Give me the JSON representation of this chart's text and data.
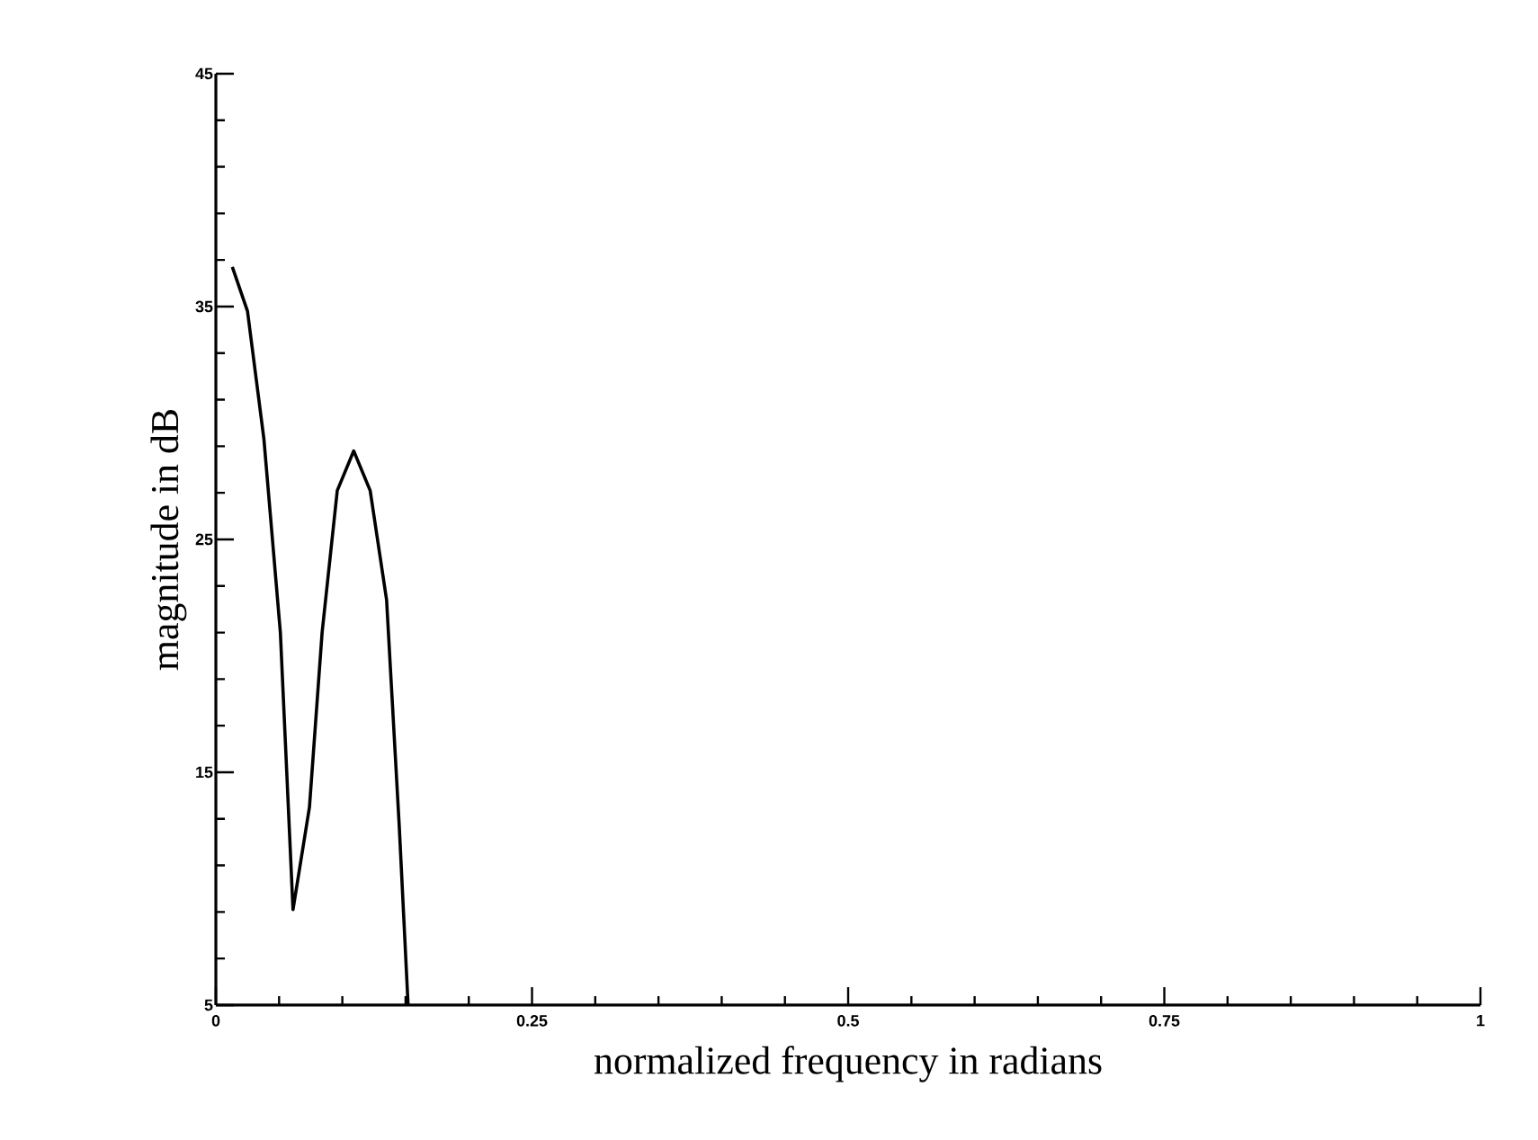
{
  "chart_data": {
    "type": "line",
    "xlabel": "normalized frequency in radians",
    "ylabel": "magnitude in dB",
    "x": [
      0.013,
      0.025,
      0.038,
      0.051,
      0.061,
      0.074,
      0.084,
      0.096,
      0.109,
      0.122,
      0.135,
      0.145,
      0.152
    ],
    "values": [
      36.7,
      34.8,
      29.3,
      21.0,
      9.1,
      13.5,
      21.0,
      27.1,
      28.8,
      27.1,
      22.4,
      12.7,
      5
    ],
    "color": "#000000",
    "xlim": [
      0,
      1
    ],
    "ylim": [
      5,
      45
    ],
    "xticks": [
      0,
      0.25,
      0.5,
      0.75,
      1
    ],
    "yticks": [
      5,
      15,
      25,
      35,
      45
    ],
    "grid": false,
    "marker": "none",
    "line_style": "solid"
  }
}
